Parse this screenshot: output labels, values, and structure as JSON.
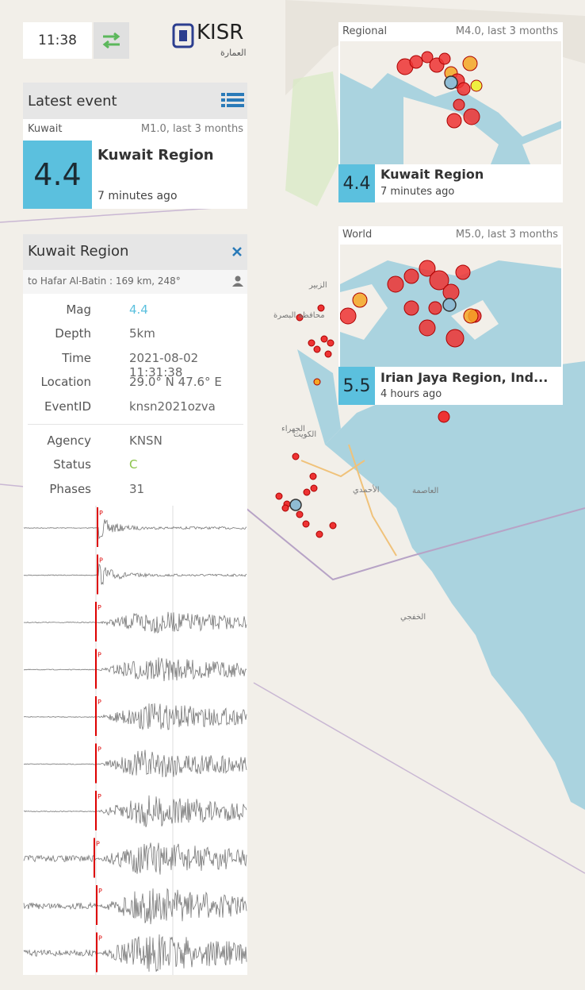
{
  "clock": "11:38",
  "logo": {
    "name": "KISR",
    "subtitle": "العمارة"
  },
  "latest": {
    "title": "Latest event",
    "network": "Kuwait",
    "filter": "M1.0, last 3 months",
    "mag": "4.4",
    "region": "Kuwait Region",
    "ago": "7 minutes ago"
  },
  "detail": {
    "title": "Kuwait Region",
    "distance": "to Hafar Al-Batin : 169 km, 248°",
    "rows": [
      [
        "Mag",
        "4.4"
      ],
      [
        "Depth",
        "5km"
      ],
      [
        "Time",
        "2021-08-02 11:31:38"
      ],
      [
        "Location",
        "29.0° N 47.6° E"
      ],
      [
        "EventID",
        "knsn2021ozva"
      ]
    ],
    "rows2": [
      [
        "Agency",
        "KNSN"
      ],
      [
        "Status",
        "C"
      ],
      [
        "Phases",
        "31"
      ]
    ],
    "phase": "P"
  },
  "regional": {
    "title": "Regional",
    "filter": "M4.0, last 3 months",
    "mag": "4.4",
    "region": "Kuwait Region",
    "ago": "7 minutes ago"
  },
  "world": {
    "title": "World",
    "filter": "M5.0, last 3 months",
    "mag": "5.5",
    "region": "Irian Jaya Region, Ind...",
    "ago": "4 hours ago"
  },
  "map": {
    "labels": [
      "الكويت",
      "الجهراء",
      "الأحمدي",
      "العاصمة",
      "الخفجي",
      "محافظة البصرة",
      "الزبير"
    ]
  }
}
